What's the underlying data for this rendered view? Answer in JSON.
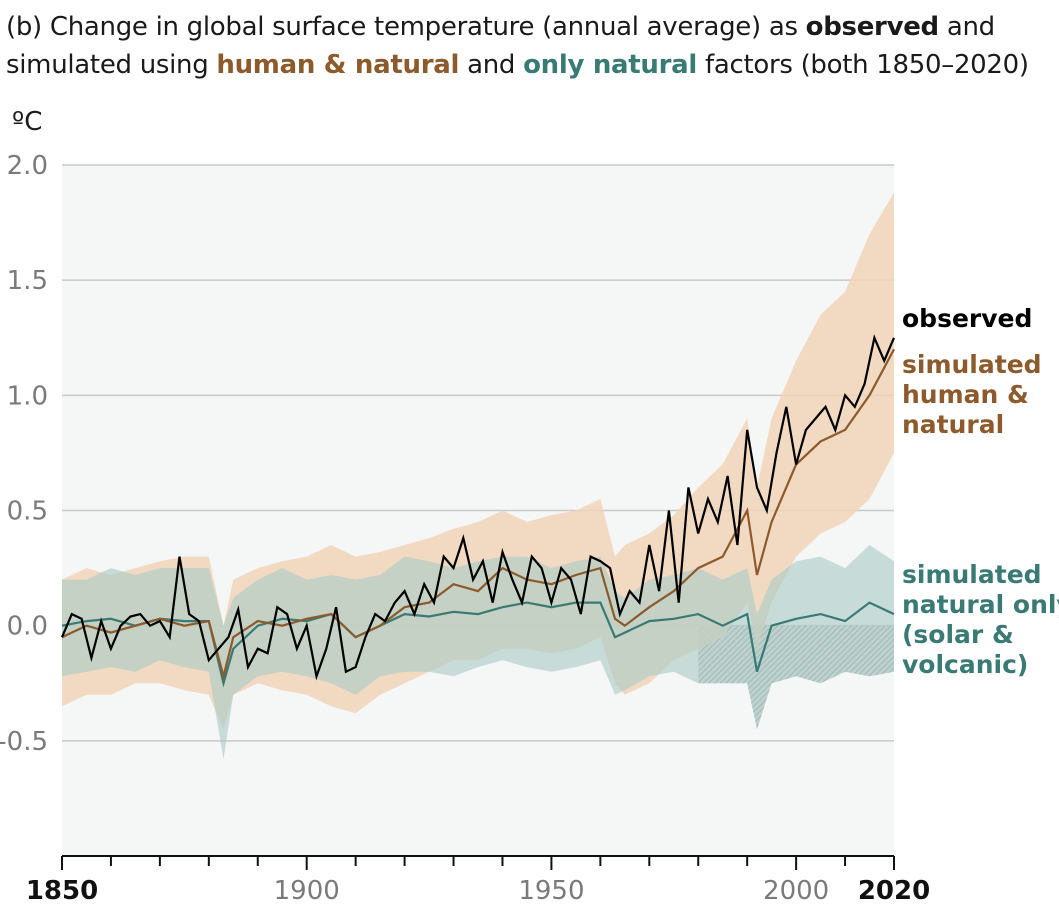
{
  "title": {
    "prefix": "(b) Change in global surface temperature (annual average) as ",
    "observed": "observed",
    "and1": " and",
    "line2_start": "simulated using ",
    "human_natural": "human & natural",
    "and2": " and ",
    "only_natural": "only natural",
    "suffix": " factors (both 1850–2020)"
  },
  "colors": {
    "observed": "#000000",
    "human_natural": "#8c5a2b",
    "human_natural_band": "#f0d3b8",
    "natural_only": "#3a7a74",
    "natural_only_band": "#a9cbc6",
    "background": "#f5f6f6",
    "gridline": "#c9c9c9"
  },
  "chart_data": {
    "type": "line",
    "ylabel": "ºC",
    "xlim": [
      1850,
      2020
    ],
    "ylim": [
      -1.0,
      2.0
    ],
    "yticks": [
      "2.0",
      "1.5",
      "1.0",
      "0.5",
      "0.0",
      "-0.5"
    ],
    "ytick_values": [
      2.0,
      1.5,
      1.0,
      0.5,
      0.0,
      -0.5
    ],
    "xticks": [
      "1850",
      "1900",
      "1950",
      "2000",
      "2020"
    ],
    "xtick_values": [
      1850,
      1900,
      1950,
      2000,
      2020
    ],
    "xtick_bold": [
      "1850",
      "2020"
    ],
    "grid": true,
    "series": [
      {
        "name": "observed",
        "label_lines": [
          "observed"
        ],
        "x": [
          1850,
          1852,
          1854,
          1856,
          1858,
          1860,
          1862,
          1864,
          1866,
          1868,
          1870,
          1872,
          1874,
          1876,
          1878,
          1880,
          1882,
          1884,
          1886,
          1888,
          1890,
          1892,
          1894,
          1896,
          1898,
          1900,
          1902,
          1904,
          1906,
          1908,
          1910,
          1912,
          1914,
          1916,
          1918,
          1920,
          1922,
          1924,
          1926,
          1928,
          1930,
          1932,
          1934,
          1936,
          1938,
          1940,
          1942,
          1944,
          1946,
          1948,
          1950,
          1952,
          1954,
          1956,
          1958,
          1960,
          1962,
          1964,
          1966,
          1968,
          1970,
          1972,
          1974,
          1976,
          1978,
          1980,
          1982,
          1984,
          1986,
          1988,
          1990,
          1992,
          1994,
          1996,
          1998,
          2000,
          2002,
          2004,
          2006,
          2008,
          2010,
          2012,
          2014,
          2016,
          2018,
          2020
        ],
        "y": [
          -0.05,
          0.05,
          0.03,
          -0.14,
          0.02,
          -0.1,
          0.0,
          0.04,
          0.05,
          0.0,
          0.02,
          -0.05,
          0.3,
          0.05,
          0.02,
          -0.15,
          -0.1,
          -0.05,
          0.07,
          -0.18,
          -0.1,
          -0.12,
          0.08,
          0.05,
          -0.1,
          0.0,
          -0.22,
          -0.1,
          0.08,
          -0.2,
          -0.18,
          -0.05,
          0.05,
          0.02,
          0.1,
          0.15,
          0.05,
          0.18,
          0.1,
          0.3,
          0.25,
          0.38,
          0.2,
          0.28,
          0.1,
          0.32,
          0.2,
          0.1,
          0.3,
          0.25,
          0.1,
          0.25,
          0.2,
          0.05,
          0.3,
          0.28,
          0.25,
          0.05,
          0.15,
          0.1,
          0.35,
          0.15,
          0.5,
          0.1,
          0.6,
          0.4,
          0.55,
          0.45,
          0.65,
          0.35,
          0.85,
          0.6,
          0.5,
          0.75,
          0.95,
          0.7,
          0.85,
          0.9,
          0.95,
          0.85,
          1.0,
          0.95,
          1.05,
          1.25,
          1.15,
          1.25
        ]
      },
      {
        "name": "simulated human & natural",
        "label_lines": [
          "simulated",
          "human &",
          "natural"
        ],
        "x": [
          1850,
          1855,
          1860,
          1865,
          1870,
          1875,
          1880,
          1883,
          1885,
          1890,
          1895,
          1900,
          1905,
          1910,
          1915,
          1920,
          1925,
          1930,
          1935,
          1940,
          1945,
          1950,
          1955,
          1960,
          1963,
          1965,
          1970,
          1975,
          1980,
          1985,
          1990,
          1992,
          1995,
          2000,
          2005,
          2010,
          2015,
          2020
        ],
        "y": [
          -0.05,
          0.0,
          -0.03,
          0.0,
          0.03,
          0.0,
          0.02,
          -0.22,
          -0.05,
          0.02,
          0.0,
          0.03,
          0.05,
          -0.05,
          0.0,
          0.08,
          0.1,
          0.18,
          0.15,
          0.25,
          0.2,
          0.18,
          0.22,
          0.25,
          0.03,
          0.0,
          0.08,
          0.15,
          0.25,
          0.3,
          0.5,
          0.22,
          0.45,
          0.7,
          0.8,
          0.85,
          1.0,
          1.2
        ],
        "band_low": [
          -0.35,
          -0.3,
          -0.3,
          -0.25,
          -0.25,
          -0.28,
          -0.3,
          -0.45,
          -0.3,
          -0.25,
          -0.28,
          -0.3,
          -0.35,
          -0.38,
          -0.3,
          -0.25,
          -0.2,
          -0.15,
          -0.15,
          -0.1,
          -0.1,
          -0.12,
          -0.1,
          -0.05,
          -0.25,
          -0.3,
          -0.25,
          -0.15,
          -0.1,
          -0.05,
          0.1,
          -0.1,
          0.1,
          0.3,
          0.4,
          0.45,
          0.55,
          0.75
        ],
        "band_high": [
          0.2,
          0.25,
          0.22,
          0.25,
          0.28,
          0.3,
          0.3,
          0.0,
          0.2,
          0.25,
          0.28,
          0.3,
          0.35,
          0.3,
          0.32,
          0.35,
          0.38,
          0.42,
          0.45,
          0.5,
          0.45,
          0.48,
          0.5,
          0.55,
          0.3,
          0.35,
          0.4,
          0.48,
          0.6,
          0.7,
          0.9,
          0.6,
          0.9,
          1.15,
          1.35,
          1.45,
          1.7,
          1.88
        ]
      },
      {
        "name": "simulated natural only (solar & volcanic)",
        "label_lines": [
          "simulated",
          "natural only",
          "(solar &",
          "volcanic)"
        ],
        "x": [
          1850,
          1855,
          1860,
          1865,
          1870,
          1875,
          1880,
          1883,
          1885,
          1890,
          1895,
          1900,
          1905,
          1910,
          1915,
          1920,
          1925,
          1930,
          1935,
          1940,
          1945,
          1950,
          1955,
          1960,
          1963,
          1965,
          1970,
          1975,
          1980,
          1985,
          1990,
          1992,
          1995,
          2000,
          2005,
          2010,
          2015,
          2020
        ],
        "y": [
          0.0,
          0.02,
          0.03,
          0.0,
          0.03,
          0.02,
          0.02,
          -0.25,
          -0.1,
          0.0,
          0.03,
          0.02,
          0.05,
          -0.05,
          0.0,
          0.05,
          0.04,
          0.06,
          0.05,
          0.08,
          0.1,
          0.08,
          0.1,
          0.1,
          -0.05,
          -0.03,
          0.02,
          0.03,
          0.05,
          0.0,
          0.05,
          -0.2,
          0.0,
          0.03,
          0.05,
          0.02,
          0.1,
          0.05
        ],
        "band_low": [
          -0.22,
          -0.2,
          -0.18,
          -0.2,
          -0.15,
          -0.18,
          -0.2,
          -0.58,
          -0.3,
          -0.22,
          -0.2,
          -0.22,
          -0.25,
          -0.3,
          -0.22,
          -0.2,
          -0.2,
          -0.22,
          -0.18,
          -0.15,
          -0.18,
          -0.2,
          -0.18,
          -0.15,
          -0.3,
          -0.28,
          -0.22,
          -0.2,
          -0.25,
          -0.25,
          -0.25,
          -0.45,
          -0.25,
          -0.22,
          -0.25,
          -0.2,
          -0.22,
          -0.2
        ],
        "band_high": [
          0.2,
          0.2,
          0.25,
          0.22,
          0.25,
          0.25,
          0.25,
          0.0,
          0.12,
          0.2,
          0.25,
          0.2,
          0.22,
          0.2,
          0.22,
          0.3,
          0.28,
          0.25,
          0.28,
          0.3,
          0.3,
          0.25,
          0.28,
          0.3,
          0.15,
          0.12,
          0.2,
          0.22,
          0.25,
          0.2,
          0.25,
          0.05,
          0.2,
          0.28,
          0.3,
          0.25,
          0.35,
          0.28
        ]
      }
    ]
  }
}
